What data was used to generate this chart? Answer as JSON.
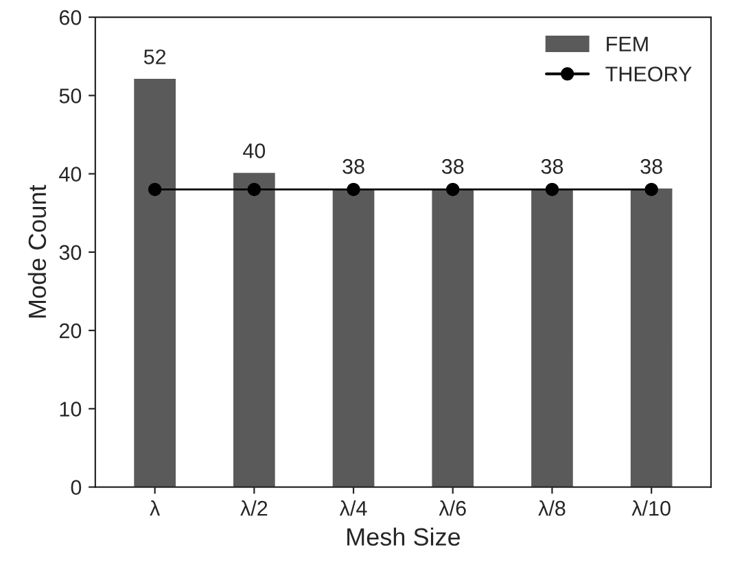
{
  "chart_data": {
    "type": "bar",
    "xlabel": "Mesh Size",
    "ylabel": "Mode Count",
    "categories": [
      "λ",
      "λ/2",
      "λ/4",
      "λ/6",
      "λ/8",
      "λ/10"
    ],
    "series": [
      {
        "name": "FEM",
        "color": "#5a5a5a",
        "values": [
          52,
          40,
          38,
          38,
          38,
          38
        ],
        "value_labels": [
          "52",
          "40",
          "38",
          "38",
          "38",
          "38"
        ]
      },
      {
        "name": "THEORY",
        "type": "line",
        "color": "#000000",
        "marker": "circle",
        "values": [
          38,
          38,
          38,
          38,
          38,
          38
        ]
      }
    ],
    "ylim": [
      0,
      60
    ],
    "yticks": [
      0,
      10,
      20,
      30,
      40,
      50,
      60
    ],
    "legend": "top right",
    "grid": false
  }
}
